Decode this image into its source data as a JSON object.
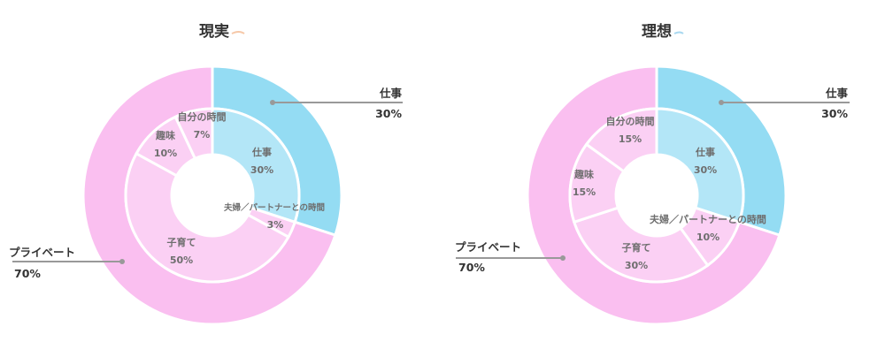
{
  "colors": {
    "work_outer": "#94dcf3",
    "work_inner": "#b3e6f7",
    "private_outer": "#fabff0",
    "private_inner": "#fbd0f4",
    "leader": "#999999",
    "divider": "#ffffff"
  },
  "chart_data": [
    {
      "type": "pie",
      "title": "現実",
      "outer": [
        {
          "label": "仕事",
          "value": "30%",
          "pct": 30
        },
        {
          "label": "プライベート",
          "value": "70%",
          "pct": 70
        }
      ],
      "inner": [
        {
          "label": "仕事",
          "value": "30%",
          "pct": 30
        },
        {
          "label": "夫婦／パートナーとの時間",
          "value": "3%",
          "pct": 3
        },
        {
          "label": "子育て",
          "value": "50%",
          "pct": 50
        },
        {
          "label": "趣味",
          "value": "10%",
          "pct": 10
        },
        {
          "label": "自分の時間",
          "value": "7%",
          "pct": 7
        }
      ]
    },
    {
      "type": "pie",
      "title": "理想",
      "outer": [
        {
          "label": "仕事",
          "value": "30%",
          "pct": 30
        },
        {
          "label": "プライベート",
          "value": "70%",
          "pct": 70
        }
      ],
      "inner": [
        {
          "label": "仕事",
          "value": "30%",
          "pct": 30
        },
        {
          "label": "夫婦／パートナーとの時間",
          "value": "10%",
          "pct": 10
        },
        {
          "label": "子育て",
          "value": "30%",
          "pct": 30
        },
        {
          "label": "趣味",
          "value": "15%",
          "pct": 15
        },
        {
          "label": "自分の時間",
          "value": "15%",
          "pct": 15
        }
      ]
    }
  ]
}
